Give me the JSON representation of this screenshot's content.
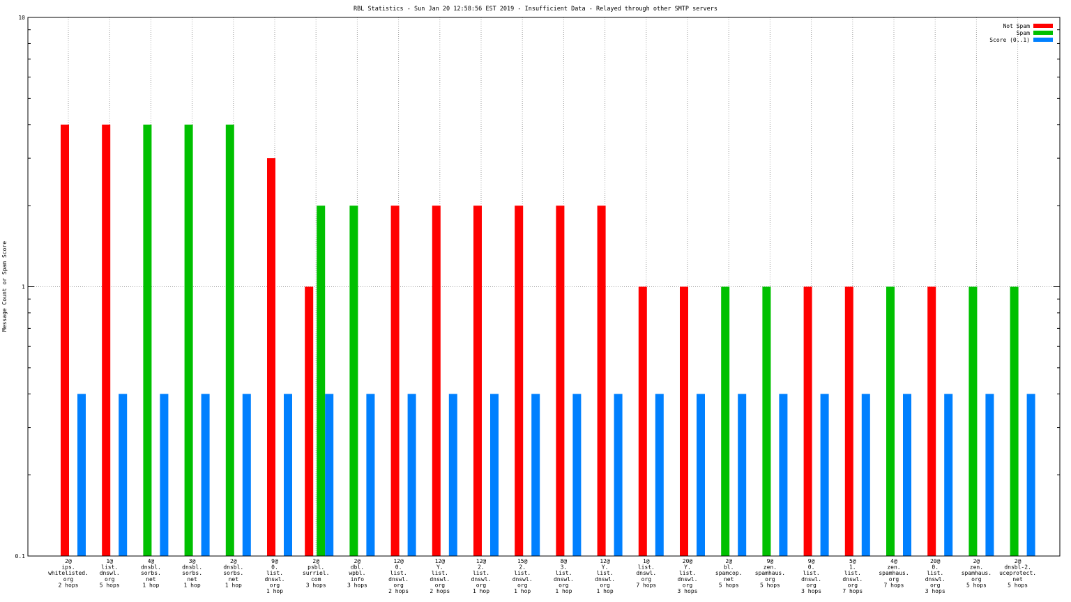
{
  "chart_data": {
    "type": "bar",
    "title": "RBL Statistics - Sun Jan 20 12:58:56 EST 2019 - Insufficient Data - Relayed through other SMTP servers",
    "ylabel": "Message Count or Spam Score",
    "xlabel": "",
    "yscale": "log",
    "ylim": [
      0.1,
      10
    ],
    "yticks": [
      "10",
      "1",
      "0.1"
    ],
    "grid": true,
    "legend_position": "top-right",
    "categories": [
      [
        "2@",
        "ips.",
        "whitelisted.",
        "org",
        "2 hops"
      ],
      [
        "1@",
        "list.",
        "dnswl.",
        "org",
        "5 hops"
      ],
      [
        "4@",
        "dnsbl.",
        "sorbs.",
        "net",
        "1 hop"
      ],
      [
        "3@",
        "dnsbl.",
        "sorbs.",
        "net",
        "1 hop"
      ],
      [
        "2@",
        "dnsbl.",
        "sorbs.",
        "net",
        "1 hop"
      ],
      [
        "9@",
        "0.",
        "list.",
        "dnswl.",
        "org",
        "1 hop"
      ],
      [
        "2@",
        "psbl.",
        "surriel.",
        "com",
        "3 hops"
      ],
      [
        "2@",
        "dbl.",
        "wpbl.",
        "info",
        "3 hops"
      ],
      [
        "12@",
        "0.",
        "list.",
        "dnswl.",
        "org",
        "2 hops"
      ],
      [
        "12@",
        "Y.",
        "list.",
        "dnswl.",
        "org",
        "2 hops"
      ],
      [
        "12@",
        "2.",
        "list.",
        "dnswl.",
        "org",
        "1 hop"
      ],
      [
        "15@",
        "2.",
        "list.",
        "dnswl.",
        "org",
        "1 hop"
      ],
      [
        "8@",
        "3.",
        "list.",
        "dnswl.",
        "org",
        "1 hop"
      ],
      [
        "12@",
        "Y.",
        "list.",
        "dnswl.",
        "org",
        "1 hop"
      ],
      [
        "1@",
        "list.",
        "dnswl.",
        "org",
        "7 hops"
      ],
      [
        "20@",
        "Y.",
        "list.",
        "dnswl.",
        "org",
        "3 hops"
      ],
      [
        "2@",
        "bl.",
        "spamcop.",
        "net",
        "5 hops"
      ],
      [
        "9@",
        "zen.",
        "spamhaus.",
        "org",
        "5 hops"
      ],
      [
        "9@",
        "0.",
        "list.",
        "dnswl.",
        "org",
        "3 hops"
      ],
      [
        "5@",
        "1.",
        "list.",
        "dnswl.",
        "org",
        "7 hops"
      ],
      [
        "4@",
        "zen.",
        "spamhaus.",
        "org",
        "7 hops"
      ],
      [
        "20@",
        "0.",
        "list.",
        "dnswl.",
        "org",
        "3 hops"
      ],
      [
        "2@",
        "zen.",
        "spamhaus.",
        "org",
        "5 hops"
      ],
      [
        "2@",
        "dnsbl-2.",
        "uceprotect.",
        "net",
        "5 hops"
      ]
    ],
    "series": [
      {
        "name": "Not Spam",
        "color": "#ff0000",
        "values": [
          4,
          4,
          null,
          null,
          null,
          3,
          1,
          null,
          2,
          2,
          2,
          2,
          2,
          2,
          1,
          1,
          null,
          null,
          1,
          1,
          null,
          1,
          null,
          null
        ]
      },
      {
        "name": "Spam",
        "color": "#00c000",
        "values": [
          null,
          null,
          4,
          4,
          4,
          null,
          2,
          2,
          null,
          null,
          null,
          null,
          null,
          null,
          null,
          null,
          1,
          1,
          null,
          null,
          1,
          null,
          1,
          1
        ]
      },
      {
        "name": "Score (0..1)",
        "color": "#0080ff",
        "values": [
          0.4,
          0.4,
          0.4,
          0.4,
          0.4,
          0.4,
          0.4,
          0.4,
          0.4,
          0.4,
          0.4,
          0.4,
          0.4,
          0.4,
          0.4,
          0.4,
          0.4,
          0.4,
          0.4,
          0.4,
          0.4,
          0.4,
          0.4,
          0.4
        ]
      }
    ]
  }
}
